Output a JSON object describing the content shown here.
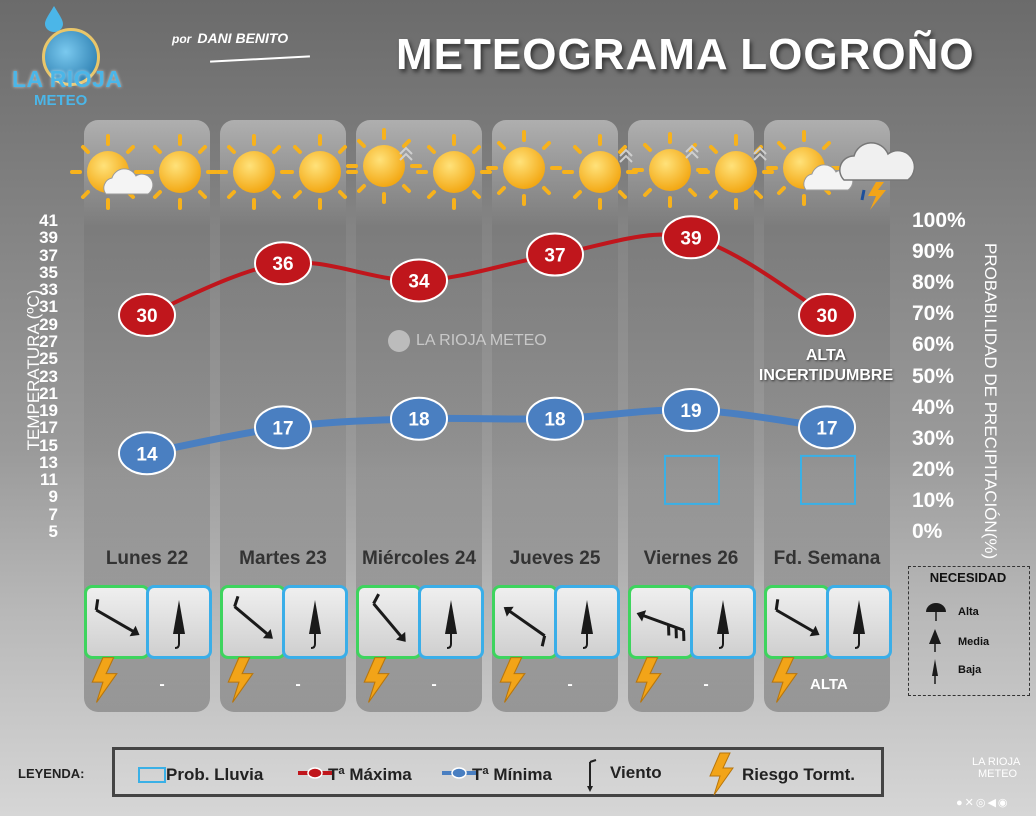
{
  "header": {
    "logo_line1": "LA RIOJA",
    "logo_line2": "METEO",
    "author_prefix": "por",
    "author_name": "DANI BENITO",
    "title": "METEOGRAMA LOGROÑO"
  },
  "chart_data": {
    "type": "line",
    "categories": [
      "Lunes 22",
      "Martes 23",
      "Miércoles 24",
      "Jueves 25",
      "Viernes 26",
      "Fd. Semana"
    ],
    "series": [
      {
        "name": "Tª Máxima",
        "values": [
          30,
          36,
          34,
          37,
          39,
          30
        ],
        "color": "#c0161c"
      },
      {
        "name": "Tª Mínima",
        "values": [
          14,
          17,
          18,
          18,
          19,
          17
        ],
        "color": "#4a7fc1"
      },
      {
        "name": "Prob. Lluvia",
        "values": [
          null,
          null,
          null,
          null,
          10,
          10
        ],
        "color": "#3ab0e6"
      }
    ],
    "ylabel": "TEMPERATURA (ºC)",
    "y2label": "PROBABILIDAD DE PRECIPITACIÓN(%)",
    "ylim": [
      5,
      41
    ],
    "y2lim": [
      0,
      100
    ],
    "yticks": [
      "41",
      "39",
      "37",
      "35",
      "33",
      "31",
      "29",
      "27",
      "25",
      "23",
      "21",
      "19",
      "17",
      "15",
      "13",
      "11",
      "9",
      "7",
      "5"
    ],
    "y2ticks": [
      "100%",
      "90%",
      "80%",
      "70%",
      "60%",
      "50%",
      "40%",
      "30%",
      "20%",
      "10%",
      "0%"
    ],
    "annotations": [
      "ALTA INCERTIDUMBRE"
    ],
    "watermark": "LA RIOJA METEO"
  },
  "days": [
    {
      "wind_dir": 300,
      "storm": "-"
    },
    {
      "wind_dir": 310,
      "storm": "-"
    },
    {
      "wind_dir": 320,
      "storm": "-"
    },
    {
      "wind_dir": 125,
      "storm": "-"
    },
    {
      "wind_dir": 110,
      "storm": "-"
    },
    {
      "wind_dir": 300,
      "storm": "ALTA"
    }
  ],
  "need_legend": {
    "title": "NECESIDAD",
    "items": [
      "Alta",
      "Media",
      "Baja"
    ]
  },
  "legend": {
    "label": "LEYENDA:",
    "rain": "Prob. Lluvia",
    "tmax": "Tª Máxima",
    "tmin": "Tª Mínima",
    "wind": "Viento",
    "storm": "Riesgo Tormt."
  },
  "footer": {
    "logo_line1": "LA RIOJA",
    "logo_line2": "METEO"
  },
  "colors": {
    "tmax": "#c0161c",
    "tmin": "#4a7fc1",
    "rain": "#3ab0e6",
    "wind_box": "#3ed45e",
    "need_box": "#3aaee8",
    "storm": "#f2a418"
  }
}
